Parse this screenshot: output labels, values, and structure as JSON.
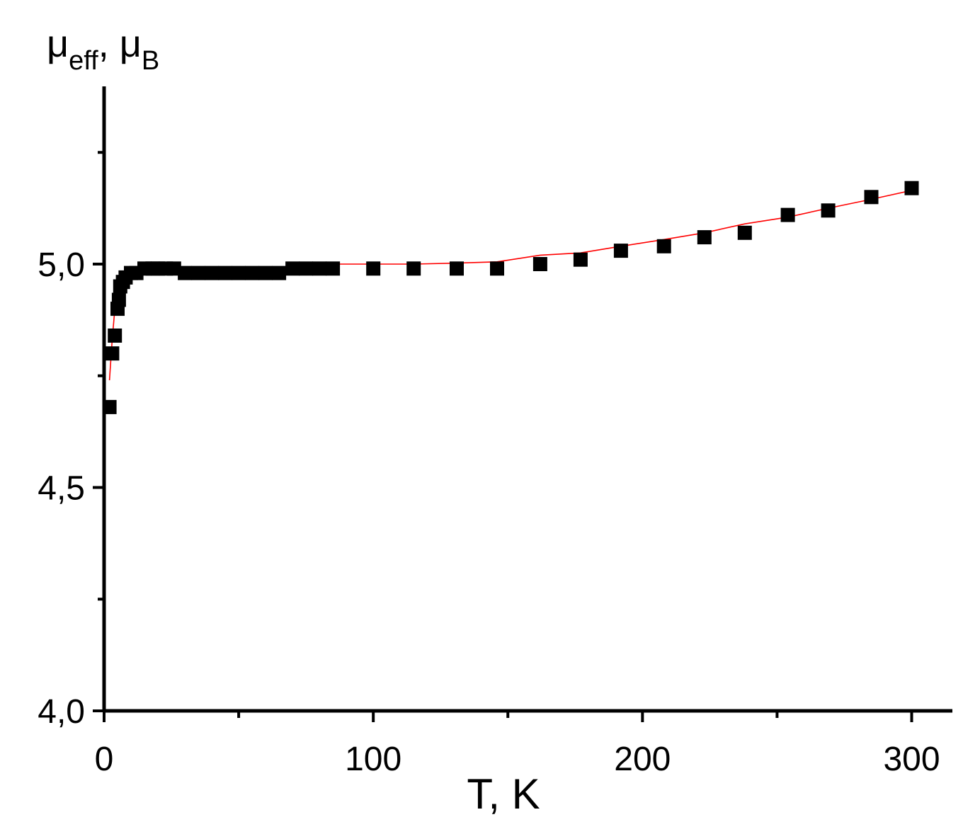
{
  "chart_data": {
    "type": "scatter",
    "xlabel": "T, K",
    "ylabel": {
      "main": "μ",
      "main_sub": "eff",
      "sep": ", ",
      "unit": "μ",
      "unit_sub": "B"
    },
    "xlim": [
      0,
      315
    ],
    "ylim": [
      4.0,
      5.39
    ],
    "x_ticks": [
      {
        "value": 0,
        "label": "0"
      },
      {
        "value": 100,
        "label": "100"
      },
      {
        "value": 200,
        "label": "200"
      },
      {
        "value": 300,
        "label": "300"
      }
    ],
    "x_minor_ticks": [
      50,
      150,
      250
    ],
    "y_ticks": [
      {
        "value": 4.0,
        "label": "4,0"
      },
      {
        "value": 4.5,
        "label": "4,5"
      },
      {
        "value": 5.0,
        "label": "5,0"
      }
    ],
    "y_minor_ticks": [
      4.25,
      4.75,
      5.25
    ],
    "grid": false,
    "series": [
      {
        "kind": "points",
        "marker": "square",
        "color": "#000000",
        "points": [
          [
            2,
            4.68
          ],
          [
            3,
            4.8
          ],
          [
            4,
            4.84
          ],
          [
            5,
            4.9
          ],
          [
            5.5,
            4.92
          ],
          [
            6,
            4.95
          ],
          [
            7,
            4.96
          ],
          [
            8,
            4.97
          ],
          [
            10,
            4.98
          ],
          [
            12,
            4.98
          ],
          [
            15,
            4.99
          ],
          [
            18,
            4.99
          ],
          [
            20,
            4.99
          ],
          [
            23,
            4.99
          ],
          [
            26,
            4.99
          ],
          [
            30,
            4.98
          ],
          [
            35,
            4.98
          ],
          [
            40,
            4.98
          ],
          [
            45,
            4.98
          ],
          [
            50,
            4.98
          ],
          [
            55,
            4.98
          ],
          [
            60,
            4.98
          ],
          [
            65,
            4.98
          ],
          [
            70,
            4.99
          ],
          [
            75,
            4.99
          ],
          [
            80,
            4.99
          ],
          [
            85,
            4.99
          ],
          [
            100,
            4.99
          ],
          [
            115,
            4.99
          ],
          [
            131,
            4.99
          ],
          [
            146,
            4.99
          ],
          [
            162,
            5.0
          ],
          [
            177,
            5.01
          ],
          [
            192,
            5.03
          ],
          [
            208,
            5.04
          ],
          [
            223,
            5.06
          ],
          [
            238,
            5.07
          ],
          [
            254,
            5.11
          ],
          [
            269,
            5.12
          ],
          [
            285,
            5.15
          ],
          [
            300,
            5.17
          ]
        ]
      },
      {
        "kind": "line",
        "color": "#ff0000",
        "points": [
          [
            2,
            4.74
          ],
          [
            3,
            4.83
          ],
          [
            4,
            4.9
          ],
          [
            5,
            4.94
          ],
          [
            6,
            4.96
          ],
          [
            8,
            4.97
          ],
          [
            10,
            4.975
          ],
          [
            15,
            4.98
          ],
          [
            20,
            4.985
          ],
          [
            30,
            4.99
          ],
          [
            50,
            4.99
          ],
          [
            75,
            4.99
          ],
          [
            80,
            5.0
          ],
          [
            100,
            5.0
          ],
          [
            115,
            5.0
          ],
          [
            130,
            5.002
          ],
          [
            146,
            5.005
          ],
          [
            162,
            5.02
          ],
          [
            177,
            5.025
          ],
          [
            192,
            5.04
          ],
          [
            208,
            5.055
          ],
          [
            223,
            5.07
          ],
          [
            238,
            5.09
          ],
          [
            254,
            5.105
          ],
          [
            269,
            5.125
          ],
          [
            285,
            5.145
          ],
          [
            300,
            5.165
          ]
        ]
      }
    ]
  }
}
